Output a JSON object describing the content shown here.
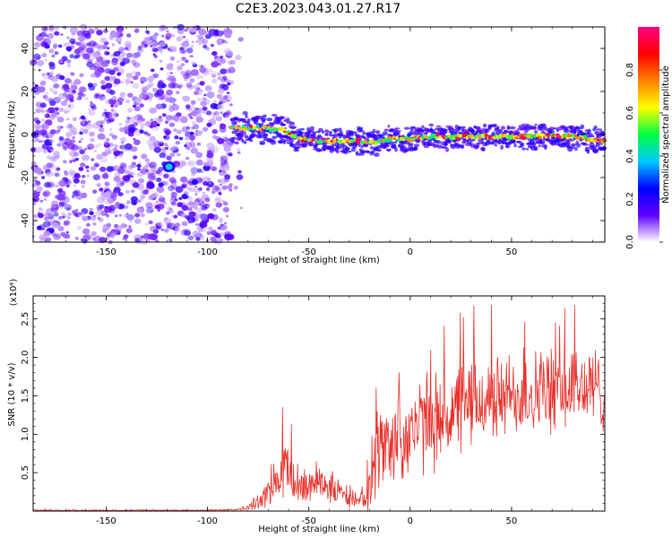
{
  "figure_title": "C2E3.2023.043.01.27.R17",
  "chart_data": [
    {
      "type": "heatmap",
      "panel": "spectrogram",
      "xlabel": "Height of straight line (km)",
      "ylabel": "Frequency (Hz)",
      "xlim": [
        -186,
        96
      ],
      "ylim": [
        -50,
        50
      ],
      "x_ticks": [
        -150,
        -100,
        -50,
        0,
        50
      ],
      "x_tick_labels": [
        "-150",
        "-100",
        "-50",
        "0",
        "50"
      ],
      "y_ticks": [
        -40,
        -20,
        0,
        20,
        40
      ],
      "y_tick_labels": [
        "-40",
        "-20",
        "0",
        "20",
        "40"
      ],
      "noise_region_x": [
        -186,
        -88
      ],
      "signal_track": {
        "x": [
          -88,
          -80,
          -70,
          -62,
          -55,
          -45,
          -35,
          -25,
          -20,
          -10,
          0,
          10,
          20,
          30,
          40,
          50,
          60,
          70,
          80,
          96
        ],
        "y": [
          3,
          3,
          3,
          2,
          -2,
          -3,
          -3,
          -3,
          -4,
          -2,
          -2,
          -1,
          -1,
          -1,
          -1,
          -1,
          -1,
          -1,
          -1,
          -3
        ]
      },
      "isolated_spot": {
        "x": -119,
        "y": -15
      },
      "colorbar": {
        "label": "Normalized spectral amplitude",
        "range": [
          0,
          1
        ],
        "ticks": [
          0.0,
          0.2,
          0.4,
          0.6,
          0.8
        ],
        "tick_labels": [
          "0.0",
          "0.2",
          "0.4",
          "0.6",
          "0.8"
        ],
        "colors": [
          "#ffffff",
          "#6000ff",
          "#0000ff",
          "#00c8ff",
          "#00ff40",
          "#ffff00",
          "#ff8000",
          "#ff0000",
          "#ff0080"
        ]
      }
    },
    {
      "type": "line",
      "panel": "snr",
      "xlabel": "Height of straight line (km)",
      "ylabel": "SNR (10 * v/v)",
      "y_multiplier_label": "(x10⁴)",
      "xlim": [
        -186,
        96
      ],
      "ylim": [
        0,
        2.8
      ],
      "x_ticks": [
        -150,
        -100,
        -50,
        0,
        50
      ],
      "x_tick_labels": [
        "-150",
        "-100",
        "-50",
        "0",
        "50"
      ],
      "y_ticks": [
        0.5,
        1.0,
        1.5,
        2.0,
        2.5
      ],
      "y_tick_labels": [
        "0.5",
        "1.0",
        "1.5",
        "2.0",
        "2.5"
      ],
      "line_color": "#e8302a",
      "envelope": {
        "x": [
          -186,
          -100,
          -85,
          -80,
          -75,
          -70,
          -65,
          -62,
          -58,
          -55,
          -50,
          -45,
          -40,
          -35,
          -30,
          -27,
          -25,
          -22,
          -20,
          -18,
          -15,
          -10,
          -5,
          0,
          5,
          10,
          15,
          20,
          25,
          30,
          40,
          50,
          60,
          70,
          80,
          90,
          96
        ],
        "mean": [
          0.01,
          0.01,
          0.02,
          0.05,
          0.12,
          0.25,
          0.4,
          0.55,
          0.4,
          0.3,
          0.32,
          0.45,
          0.3,
          0.25,
          0.15,
          0.12,
          0.12,
          0.15,
          0.6,
          0.75,
          0.8,
          0.9,
          0.95,
          1.05,
          1.1,
          1.15,
          1.2,
          1.25,
          1.35,
          1.4,
          1.45,
          1.5,
          1.55,
          1.55,
          1.6,
          1.6,
          1.55
        ],
        "spread": [
          0.01,
          0.01,
          0.01,
          0.04,
          0.1,
          0.2,
          0.35,
          0.45,
          0.3,
          0.25,
          0.25,
          0.25,
          0.22,
          0.18,
          0.1,
          0.08,
          0.08,
          0.2,
          0.7,
          0.6,
          0.55,
          0.55,
          0.6,
          0.6,
          0.6,
          0.6,
          0.6,
          0.6,
          0.6,
          0.6,
          0.55,
          0.55,
          0.55,
          0.55,
          0.55,
          0.55,
          0.5
        ]
      }
    }
  ]
}
